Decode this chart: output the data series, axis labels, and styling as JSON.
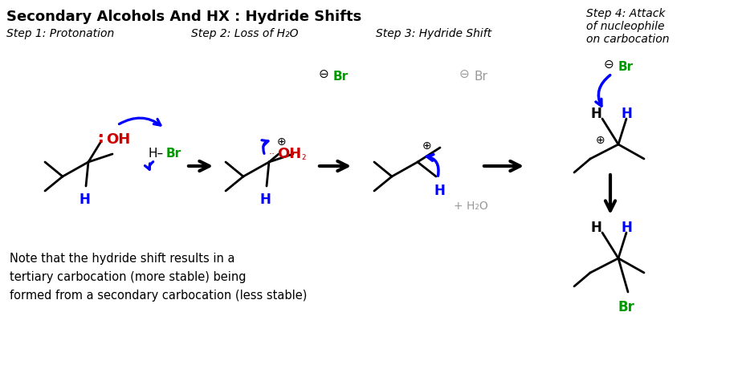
{
  "title": "Secondary Alcohols And HX : Hydride Shifts",
  "bg_color": "#ffffff",
  "black": "#000000",
  "blue": "#0000ff",
  "red": "#cc0000",
  "green": "#009900",
  "gray": "#999999",
  "step1_label": "Step 1: Protonation",
  "step2_label": "Step 2: Loss of H₂O",
  "step3_label": "Step 3: Hydride Shift",
  "step4_label": "Step 4: Attack\nof nucleophile\non carbocation",
  "note_text": "Note that the hydride shift results in a\ntertiary carbocation (more stable) being\nformed from a secondary carbocation (less stable)"
}
